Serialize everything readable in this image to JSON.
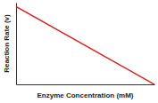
{
  "chart_data": {
    "type": "line",
    "x_label": "Enzyme Concentration (mM)",
    "y_label": "Reaction Rate (v)",
    "x": [
      0,
      1
    ],
    "values": [
      1,
      0
    ],
    "color": "#d62020",
    "xlim": [
      0,
      1
    ],
    "ylim": [
      0,
      1.05
    ],
    "tick_labels": false,
    "grid": false
  }
}
